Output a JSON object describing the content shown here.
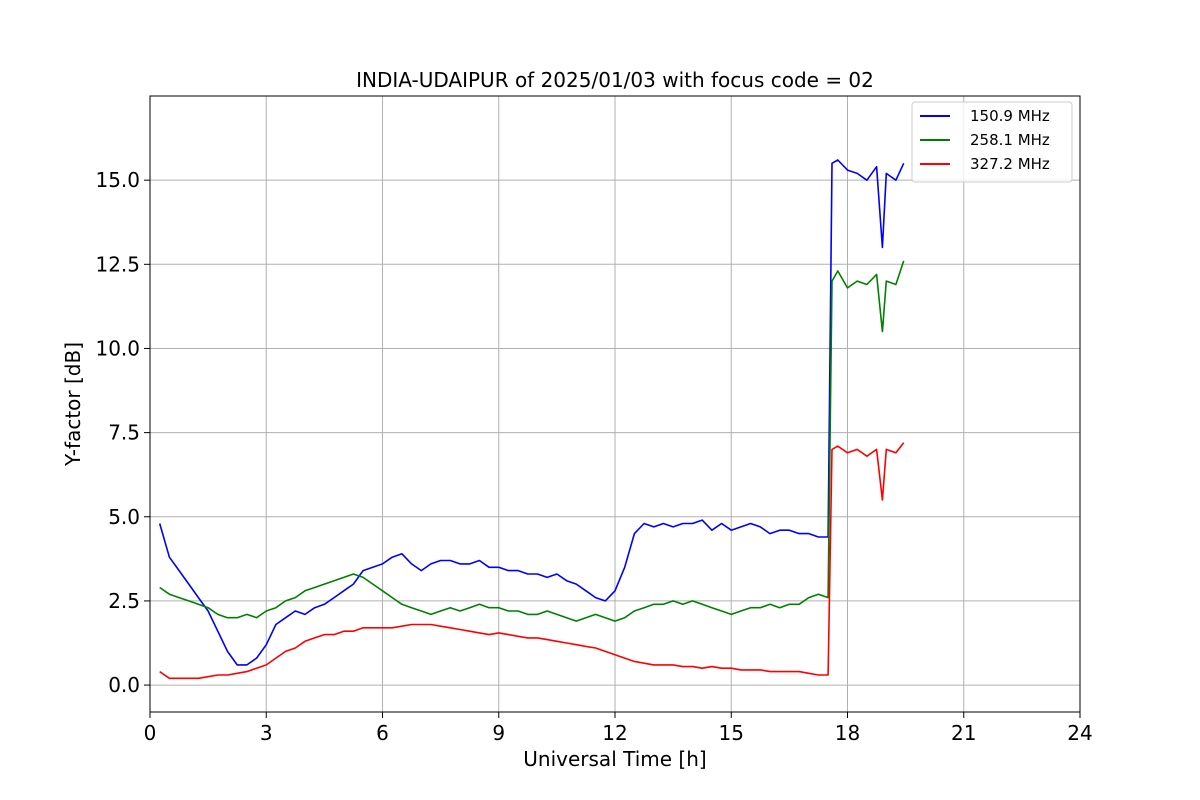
{
  "chart_data": {
    "type": "line",
    "title": "INDIA-UDAIPUR of 2025/01/03 with focus code = 02",
    "xlabel": "Universal Time [h]",
    "ylabel": "Y-factor [dB]",
    "xlim": [
      0,
      24
    ],
    "ylim": [
      -0.8,
      17.5
    ],
    "xticks": [
      0,
      3,
      6,
      9,
      12,
      15,
      18,
      21,
      24
    ],
    "xtick_labels": [
      "0",
      "3",
      "6",
      "9",
      "12",
      "15",
      "18",
      "21",
      "24"
    ],
    "yticks": [
      0,
      2.5,
      5,
      7.5,
      10,
      12.5,
      15
    ],
    "ytick_labels": [
      "0.0",
      "2.5",
      "5.0",
      "7.5",
      "10.0",
      "12.5",
      "15.0"
    ],
    "grid": true,
    "legend_position": "top-right",
    "series": [
      {
        "name": "150.9 MHz",
        "color": "#0000ff",
        "x": [
          0.25,
          0.5,
          0.75,
          1.0,
          1.25,
          1.5,
          1.75,
          2.0,
          2.25,
          2.5,
          2.75,
          3.0,
          3.25,
          3.5,
          3.75,
          4.0,
          4.25,
          4.5,
          4.75,
          5.0,
          5.25,
          5.5,
          5.75,
          6.0,
          6.25,
          6.5,
          6.75,
          7.0,
          7.25,
          7.5,
          7.75,
          8.0,
          8.25,
          8.5,
          8.75,
          9.0,
          9.25,
          9.5,
          9.75,
          10.0,
          10.25,
          10.5,
          10.75,
          11.0,
          11.25,
          11.5,
          11.75,
          12.0,
          12.25,
          12.5,
          12.75,
          13.0,
          13.25,
          13.5,
          13.75,
          14.0,
          14.25,
          14.5,
          14.75,
          15.0,
          15.25,
          15.5,
          15.75,
          16.0,
          16.25,
          16.5,
          16.75,
          17.0,
          17.25,
          17.5,
          17.6,
          17.75,
          18.0,
          18.25,
          18.5,
          18.75,
          18.9,
          19.0,
          19.25,
          19.45
        ],
        "y": [
          4.8,
          3.8,
          3.4,
          3.0,
          2.6,
          2.2,
          1.6,
          1.0,
          0.6,
          0.6,
          0.8,
          1.2,
          1.8,
          2.0,
          2.2,
          2.1,
          2.3,
          2.4,
          2.6,
          2.8,
          3.0,
          3.4,
          3.5,
          3.6,
          3.8,
          3.9,
          3.6,
          3.4,
          3.6,
          3.7,
          3.7,
          3.6,
          3.6,
          3.7,
          3.5,
          3.5,
          3.4,
          3.4,
          3.3,
          3.3,
          3.2,
          3.3,
          3.1,
          3.0,
          2.8,
          2.6,
          2.5,
          2.8,
          3.5,
          4.5,
          4.8,
          4.7,
          4.8,
          4.7,
          4.8,
          4.8,
          4.9,
          4.6,
          4.8,
          4.6,
          4.7,
          4.8,
          4.7,
          4.5,
          4.6,
          4.6,
          4.5,
          4.5,
          4.4,
          4.4,
          15.5,
          15.6,
          15.3,
          15.2,
          15.0,
          15.4,
          13.0,
          15.2,
          15.0,
          15.5
        ]
      },
      {
        "name": "258.1 MHz",
        "color": "#008000",
        "x": [
          0.25,
          0.5,
          0.75,
          1.0,
          1.25,
          1.5,
          1.75,
          2.0,
          2.25,
          2.5,
          2.75,
          3.0,
          3.25,
          3.5,
          3.75,
          4.0,
          4.25,
          4.5,
          4.75,
          5.0,
          5.25,
          5.5,
          5.75,
          6.0,
          6.25,
          6.5,
          6.75,
          7.0,
          7.25,
          7.5,
          7.75,
          8.0,
          8.25,
          8.5,
          8.75,
          9.0,
          9.25,
          9.5,
          9.75,
          10.0,
          10.25,
          10.5,
          10.75,
          11.0,
          11.25,
          11.5,
          11.75,
          12.0,
          12.25,
          12.5,
          12.75,
          13.0,
          13.25,
          13.5,
          13.75,
          14.0,
          14.25,
          14.5,
          14.75,
          15.0,
          15.25,
          15.5,
          15.75,
          16.0,
          16.25,
          16.5,
          16.75,
          17.0,
          17.25,
          17.5,
          17.6,
          17.75,
          18.0,
          18.25,
          18.5,
          18.75,
          18.9,
          19.0,
          19.25,
          19.45
        ],
        "y": [
          2.9,
          2.7,
          2.6,
          2.5,
          2.4,
          2.3,
          2.1,
          2.0,
          2.0,
          2.1,
          2.0,
          2.2,
          2.3,
          2.5,
          2.6,
          2.8,
          2.9,
          3.0,
          3.1,
          3.2,
          3.3,
          3.2,
          3.0,
          2.8,
          2.6,
          2.4,
          2.3,
          2.2,
          2.1,
          2.2,
          2.3,
          2.2,
          2.3,
          2.4,
          2.3,
          2.3,
          2.2,
          2.2,
          2.1,
          2.1,
          2.2,
          2.1,
          2.0,
          1.9,
          2.0,
          2.1,
          2.0,
          1.9,
          2.0,
          2.2,
          2.3,
          2.4,
          2.4,
          2.5,
          2.4,
          2.5,
          2.4,
          2.3,
          2.2,
          2.1,
          2.2,
          2.3,
          2.3,
          2.4,
          2.3,
          2.4,
          2.4,
          2.6,
          2.7,
          2.6,
          12.0,
          12.3,
          11.8,
          12.0,
          11.9,
          12.2,
          10.5,
          12.0,
          11.9,
          12.6
        ]
      },
      {
        "name": "327.2 MHz",
        "color": "#ff0000",
        "x": [
          0.25,
          0.5,
          0.75,
          1.0,
          1.25,
          1.5,
          1.75,
          2.0,
          2.25,
          2.5,
          2.75,
          3.0,
          3.25,
          3.5,
          3.75,
          4.0,
          4.25,
          4.5,
          4.75,
          5.0,
          5.25,
          5.5,
          5.75,
          6.0,
          6.25,
          6.5,
          6.75,
          7.0,
          7.25,
          7.5,
          7.75,
          8.0,
          8.25,
          8.5,
          8.75,
          9.0,
          9.25,
          9.5,
          9.75,
          10.0,
          10.25,
          10.5,
          10.75,
          11.0,
          11.25,
          11.5,
          11.75,
          12.0,
          12.25,
          12.5,
          12.75,
          13.0,
          13.25,
          13.5,
          13.75,
          14.0,
          14.25,
          14.5,
          14.75,
          15.0,
          15.25,
          15.5,
          15.75,
          16.0,
          16.25,
          16.5,
          16.75,
          17.0,
          17.25,
          17.5,
          17.6,
          17.75,
          18.0,
          18.25,
          18.5,
          18.75,
          18.9,
          19.0,
          19.25,
          19.45
        ],
        "y": [
          0.4,
          0.2,
          0.2,
          0.2,
          0.2,
          0.25,
          0.3,
          0.3,
          0.35,
          0.4,
          0.5,
          0.6,
          0.8,
          1.0,
          1.1,
          1.3,
          1.4,
          1.5,
          1.5,
          1.6,
          1.6,
          1.7,
          1.7,
          1.7,
          1.7,
          1.75,
          1.8,
          1.8,
          1.8,
          1.75,
          1.7,
          1.65,
          1.6,
          1.55,
          1.5,
          1.55,
          1.5,
          1.45,
          1.4,
          1.4,
          1.35,
          1.3,
          1.25,
          1.2,
          1.15,
          1.1,
          1.0,
          0.9,
          0.8,
          0.7,
          0.65,
          0.6,
          0.6,
          0.6,
          0.55,
          0.55,
          0.5,
          0.55,
          0.5,
          0.5,
          0.45,
          0.45,
          0.45,
          0.4,
          0.4,
          0.4,
          0.4,
          0.35,
          0.3,
          0.3,
          7.0,
          7.1,
          6.9,
          7.0,
          6.8,
          7.0,
          5.5,
          7.0,
          6.9,
          7.2
        ]
      }
    ]
  }
}
